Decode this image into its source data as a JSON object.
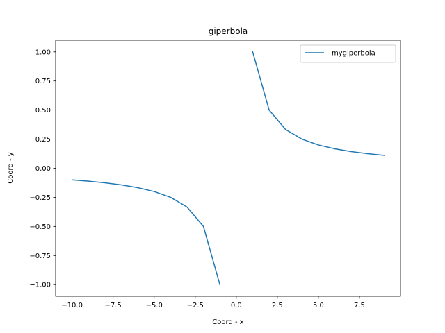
{
  "chart_data": {
    "type": "line",
    "title": "giperbola",
    "xlabel": "Coord - x",
    "ylabel": "Coord - y",
    "xlim": [
      -11.0,
      10.0
    ],
    "ylim": [
      -1.1,
      1.1
    ],
    "xticks": [
      -10.0,
      -7.5,
      -5.0,
      -2.5,
      0.0,
      2.5,
      5.0,
      7.5
    ],
    "xtick_labels": [
      "−10.0",
      "−7.5",
      "−5.0",
      "−2.5",
      "0.0",
      "2.5",
      "5.0",
      "7.5"
    ],
    "yticks": [
      -1.0,
      -0.75,
      -0.5,
      -0.25,
      0.0,
      0.25,
      0.5,
      0.75,
      1.0
    ],
    "ytick_labels": [
      "−1.00",
      "−0.75",
      "−0.50",
      "−0.25",
      "0.00",
      "0.25",
      "0.50",
      "0.75",
      "1.00"
    ],
    "grid": false,
    "legend_position": "top-right",
    "series": [
      {
        "name": "mygiperbola",
        "color": "#1f77b4",
        "segments": [
          [
            [
              -10,
              -0.1
            ],
            [
              -9,
              -0.1111
            ],
            [
              -8,
              -0.125
            ],
            [
              -7,
              -0.1429
            ],
            [
              -6,
              -0.1667
            ],
            [
              -5,
              -0.2
            ],
            [
              -4,
              -0.25
            ],
            [
              -3,
              -0.3333
            ],
            [
              -2,
              -0.5
            ],
            [
              -1,
              -1.0
            ]
          ],
          [
            [
              1,
              1.0
            ],
            [
              2,
              0.5
            ],
            [
              3,
              0.3333
            ],
            [
              4,
              0.25
            ],
            [
              5,
              0.2
            ],
            [
              6,
              0.1667
            ],
            [
              7,
              0.1429
            ],
            [
              8,
              0.125
            ],
            [
              9,
              0.1111
            ]
          ]
        ]
      }
    ]
  }
}
